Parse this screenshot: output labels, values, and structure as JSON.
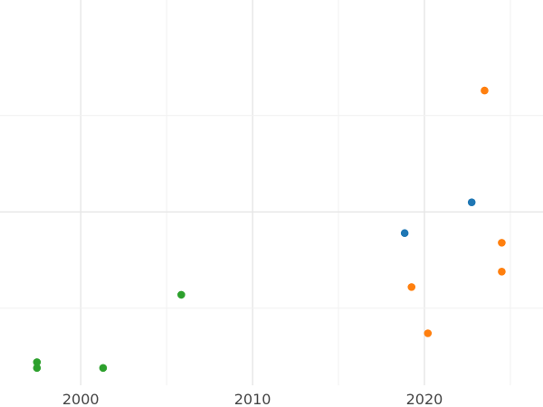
{
  "chart_data": {
    "type": "scatter",
    "title": "",
    "xlabel": "",
    "ylabel": "",
    "grid": true,
    "legend": "none",
    "xlim": [
      1995.3,
      2026.9
    ],
    "ylim": [
      0,
      1
    ],
    "x_ticks": [
      2000,
      2010,
      2020
    ],
    "x_tick_labels": [
      "2000",
      "2010",
      "2020"
    ],
    "x_minor_ticks": [
      2005,
      2015,
      2025
    ],
    "y_major_ticks": [
      0.45
    ],
    "y_minor_ticks": [
      0.2,
      0.7
    ],
    "series": [
      {
        "color": "#1f77b4",
        "points": [
          {
            "x": 2018.85,
            "y": 0.395
          },
          {
            "x": 2022.75,
            "y": 0.475
          }
        ]
      },
      {
        "color": "#ff7f0e",
        "points": [
          {
            "x": 2023.5,
            "y": 0.765
          },
          {
            "x": 2024.5,
            "y": 0.37
          },
          {
            "x": 2024.5,
            "y": 0.295
          },
          {
            "x": 2019.25,
            "y": 0.255
          },
          {
            "x": 2020.2,
            "y": 0.135
          }
        ]
      },
      {
        "color": "#2ca02c",
        "points": [
          {
            "x": 2005.85,
            "y": 0.235
          },
          {
            "x": 1997.45,
            "y": 0.06
          },
          {
            "x": 1997.45,
            "y": 0.045
          },
          {
            "x": 2001.3,
            "y": 0.045
          }
        ]
      }
    ]
  }
}
